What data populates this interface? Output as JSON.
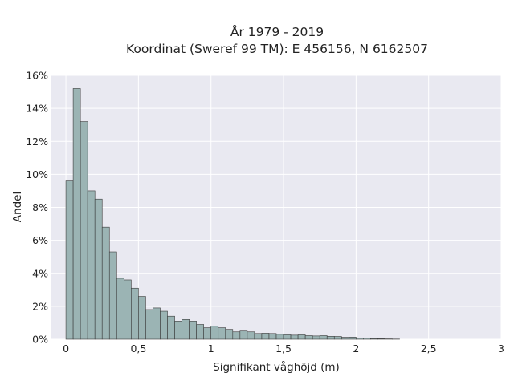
{
  "chart_data": {
    "type": "bar",
    "title": "År 1979 - 2019",
    "subtitle": "Koordinat (Sweref 99 TM): E 456156, N 6162507",
    "xlabel": "Signifikant våghöjd (m)",
    "ylabel": "Andel",
    "xlim": [
      -0.1,
      3.0
    ],
    "ylim": [
      0,
      0.16
    ],
    "x_ticks": [
      {
        "value": 0,
        "label": "0"
      },
      {
        "value": 0.5,
        "label": "0,5"
      },
      {
        "value": 1,
        "label": "1"
      },
      {
        "value": 1.5,
        "label": "1,5"
      },
      {
        "value": 2,
        "label": "2"
      },
      {
        "value": 2.5,
        "label": "2,5"
      },
      {
        "value": 3,
        "label": "3"
      }
    ],
    "y_ticks": [
      {
        "value": 0,
        "label": "0%"
      },
      {
        "value": 0.02,
        "label": "2%"
      },
      {
        "value": 0.04,
        "label": "4%"
      },
      {
        "value": 0.06,
        "label": "6%"
      },
      {
        "value": 0.08,
        "label": "8%"
      },
      {
        "value": 0.1,
        "label": "10%"
      },
      {
        "value": 0.12,
        "label": "12%"
      },
      {
        "value": 0.14,
        "label": "14%"
      },
      {
        "value": 0.16,
        "label": "16%"
      }
    ],
    "grid": true,
    "bin_width": 0.05,
    "bin_start": 0,
    "values": [
      0.096,
      0.152,
      0.132,
      0.09,
      0.085,
      0.068,
      0.053,
      0.037,
      0.036,
      0.031,
      0.026,
      0.018,
      0.019,
      0.017,
      0.014,
      0.011,
      0.012,
      0.011,
      0.009,
      0.007,
      0.008,
      0.007,
      0.006,
      0.0045,
      0.005,
      0.0045,
      0.0035,
      0.0037,
      0.0035,
      0.003,
      0.0027,
      0.0025,
      0.0027,
      0.0022,
      0.002,
      0.0022,
      0.0018,
      0.0017,
      0.0012,
      0.0013,
      0.0008,
      0.0007,
      0.0004,
      0.0003,
      0.0002,
      0.0001
    ],
    "colors": {
      "bar_fill": "#9bb4b4",
      "bar_edge": "#3a3a3a",
      "plot_bg": "#e9e9f1",
      "grid": "#ffffff"
    }
  }
}
